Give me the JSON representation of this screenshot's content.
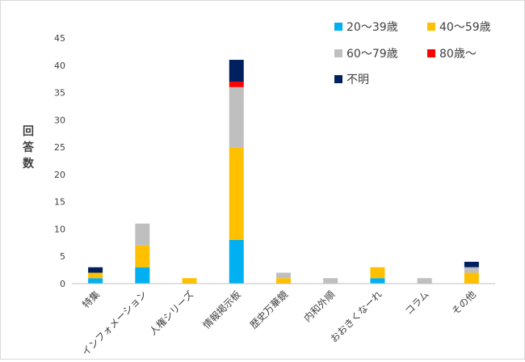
{
  "chart_data": {
    "type": "bar",
    "stacked": true,
    "categories": [
      "特集",
      "インフォメーション",
      "人権シリーズ",
      "情報掲示板",
      "歴史万華鏡",
      "内和外順",
      "おおきくなーれ",
      "コラム",
      "その他"
    ],
    "series": [
      {
        "name": "20〜39歳",
        "color": "#00b0f0",
        "values": [
          1,
          3,
          0,
          8,
          0,
          0,
          1,
          0,
          0
        ]
      },
      {
        "name": "40〜59歳",
        "color": "#ffc000",
        "values": [
          1,
          4,
          1,
          17,
          1,
          0,
          2,
          0,
          2
        ]
      },
      {
        "name": "60〜79歳",
        "color": "#bfbfbf",
        "values": [
          0,
          4,
          0,
          11,
          1,
          1,
          0,
          1,
          1
        ]
      },
      {
        "name": "80歳〜",
        "color": "#ff0000",
        "values": [
          0,
          0,
          0,
          1,
          0,
          0,
          0,
          0,
          0
        ]
      },
      {
        "name": "不明",
        "color": "#002060",
        "values": [
          1,
          0,
          0,
          4,
          0,
          0,
          0,
          0,
          1
        ]
      }
    ],
    "ylabel": "回答数",
    "ylim": [
      0,
      45
    ],
    "yticks": [
      0,
      5,
      10,
      15,
      20,
      25,
      30,
      35,
      40,
      45
    ],
    "grid": false,
    "legend_position": "top-right",
    "axis_color": "#bfbfbf",
    "text_color": "#404040"
  }
}
